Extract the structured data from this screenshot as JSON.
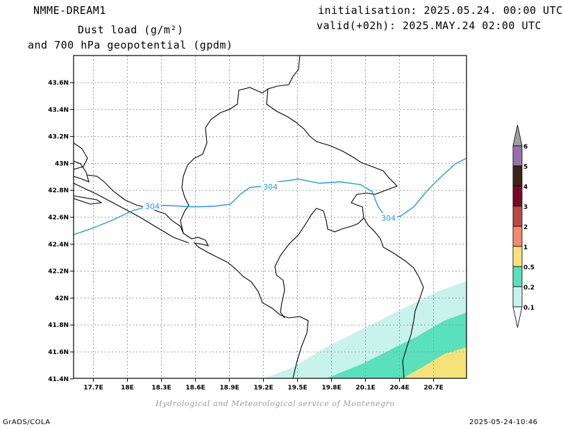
{
  "header": {
    "model": "NMME-DREAM1",
    "title_line1": "Dust load (g/m²)",
    "title_line2": "and 700 hPa geopotential (gpdm)",
    "initialisation": "initialisation: 2025.05.24. 00:00 UTC",
    "valid": "valid(+02h): 2025.MAY.24 02:00 UTC"
  },
  "footer": {
    "credit": "Hydrological and Meteorological service of Montenegro",
    "software": "GrADS/COLA",
    "timestamp": "2025-05-24-10:46"
  },
  "map": {
    "lon_ticks": [
      "17.7E",
      "18E",
      "18.3E",
      "18.6E",
      "18.9E",
      "19.2E",
      "19.5E",
      "19.8E",
      "20.1E",
      "20.4E",
      "20.7E"
    ],
    "lat_ticks": [
      "43.6N",
      "43.4N",
      "43.2N",
      "43N",
      "42.8N",
      "42.6N",
      "42.4N",
      "42.2N",
      "42N",
      "41.8N",
      "41.6N",
      "41.4N"
    ],
    "contour_label": "304",
    "contour_color": "#1e9be6",
    "colors": {
      "shade_0_1": "#c8f2ec",
      "shade_0_2": "#5ae0bc",
      "shade_0_5": "#f5e37a"
    }
  },
  "colorbar": {
    "labels": [
      "6",
      "5",
      "4",
      "3",
      "2",
      "1",
      "0.5",
      "0.2",
      "0.1"
    ],
    "colors": [
      "#a0a0a0",
      "#9870a8",
      "#3c2418",
      "#7a0828",
      "#b84c44",
      "#ee8c6c",
      "#f5e37a",
      "#5ae0bc",
      "#c8f2ec",
      "#f4fcfc"
    ]
  }
}
